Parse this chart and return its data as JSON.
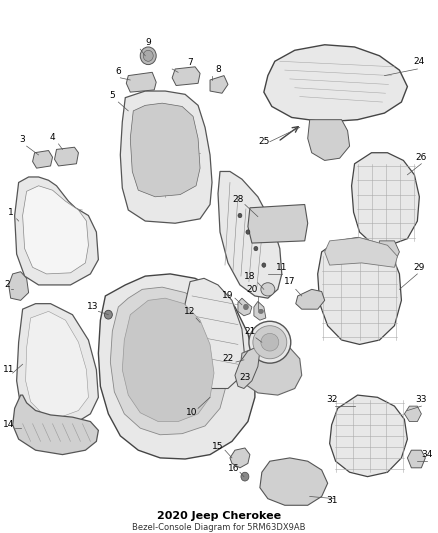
{
  "title": "2020 Jeep Cherokee",
  "subtitle": "Bezel-Console Diagram for 5RM63DX9AB",
  "background_color": "#ffffff",
  "figure_width": 4.38,
  "figure_height": 5.33,
  "dpi": 100,
  "edge_color": "#555555",
  "face_color_light": "#e8e8e8",
  "face_color_mid": "#d0d0d0",
  "face_color_dark": "#b8b8b8",
  "line_color": "#888888",
  "label_fontsize": 6.5,
  "label_color": "#000000"
}
